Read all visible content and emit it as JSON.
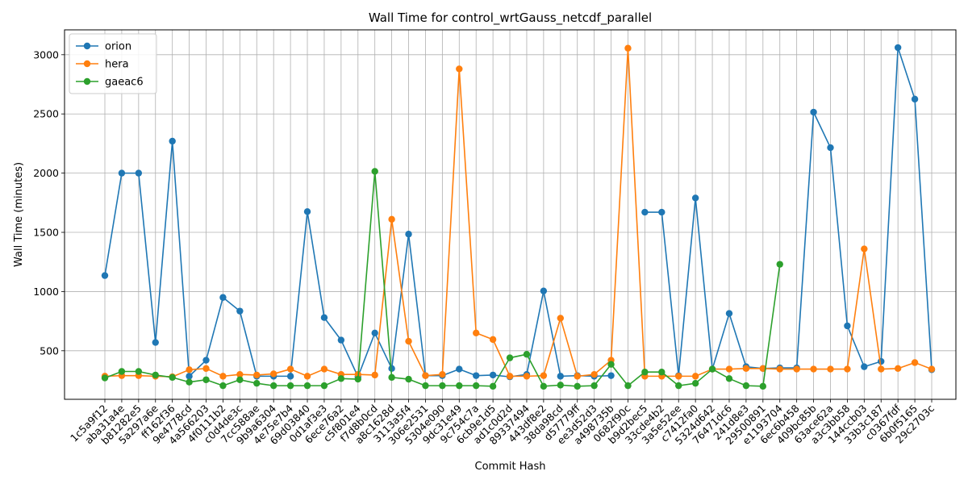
{
  "chart_data": {
    "type": "line",
    "title": "Wall Time for control_wrtGauss_netcdf_parallel",
    "xlabel": "Commit Hash",
    "ylabel": "Wall Time (minutes)",
    "ylim": [
      90,
      3210
    ],
    "yticks": [
      500,
      1000,
      1500,
      2000,
      2500,
      3000
    ],
    "grid": true,
    "legend_position": "top-left",
    "categories": [
      "1c5a9f12",
      "aba31a4e",
      "b81282e5",
      "5a297a6e",
      "ff162f36",
      "9e4778cd",
      "4a566203",
      "4f0111b2",
      "c0d4de3c",
      "7cc588ae",
      "9b9a6304",
      "4e75e7b4",
      "69d03840",
      "0d1af3e3",
      "6ece76a2",
      "c5f801e4",
      "f7d8b0cd",
      "a8c1628d",
      "3113a5f4",
      "306e2531",
      "5304e090",
      "9dc31e49",
      "9c754c7a",
      "6cb9e1d5",
      "ad1c0d2d",
      "89337494",
      "443df8e2",
      "38da98cd",
      "d57779ff",
      "ee3d52d3",
      "a498735b",
      "0682f90c",
      "b9d2bec5",
      "33cde4b2",
      "3a5e52ee",
      "c7412fa0",
      "5324d642",
      "76471dc6",
      "241d8e3",
      "29500891",
      "e1193704",
      "6ec6b458",
      "409bc85b",
      "63ace62a",
      "a3c3bb58",
      "144ccb03",
      "33b3c187",
      "c0367fdf",
      "6b0f5165",
      "29c2703c"
    ],
    "series": [
      {
        "name": "orion",
        "color": "#1f77b4",
        "values": [
          1135,
          2000,
          2000,
          570,
          2270,
          285,
          420,
          950,
          835,
          285,
          285,
          285,
          1675,
          780,
          590,
          280,
          650,
          350,
          1485,
          290,
          290,
          345,
          290,
          295,
          280,
          300,
          1005,
          285,
          290,
          285,
          290,
          null,
          1670,
          1670,
          290,
          1790,
          345,
          815,
          365,
          350,
          355,
          355,
          2515,
          2215,
          710,
          365,
          410,
          3060,
          2625,
          340
        ]
      },
      {
        "name": "hera",
        "color": "#ff7f0e",
        "values": [
          285,
          290,
          290,
          285,
          280,
          340,
          350,
          285,
          300,
          295,
          305,
          345,
          285,
          345,
          300,
          300,
          295,
          1610,
          580,
          290,
          300,
          2880,
          650,
          595,
          285,
          285,
          290,
          775,
          285,
          300,
          420,
          3055,
          285,
          285,
          285,
          285,
          345,
          345,
          350,
          350,
          345,
          345,
          345,
          345,
          345,
          1360,
          345,
          350,
          400,
          345
        ]
      },
      {
        "name": "gaeac6",
        "color": "#2ca02c",
        "values": [
          270,
          325,
          325,
          295,
          275,
          235,
          255,
          205,
          255,
          225,
          205,
          205,
          205,
          205,
          265,
          260,
          2015,
          275,
          260,
          205,
          205,
          205,
          205,
          200,
          440,
          470,
          200,
          210,
          200,
          205,
          385,
          205,
          320,
          320,
          205,
          225,
          345,
          265,
          205,
          200,
          1230,
          null,
          null,
          null,
          null,
          null,
          null,
          null,
          null,
          null
        ]
      }
    ]
  }
}
